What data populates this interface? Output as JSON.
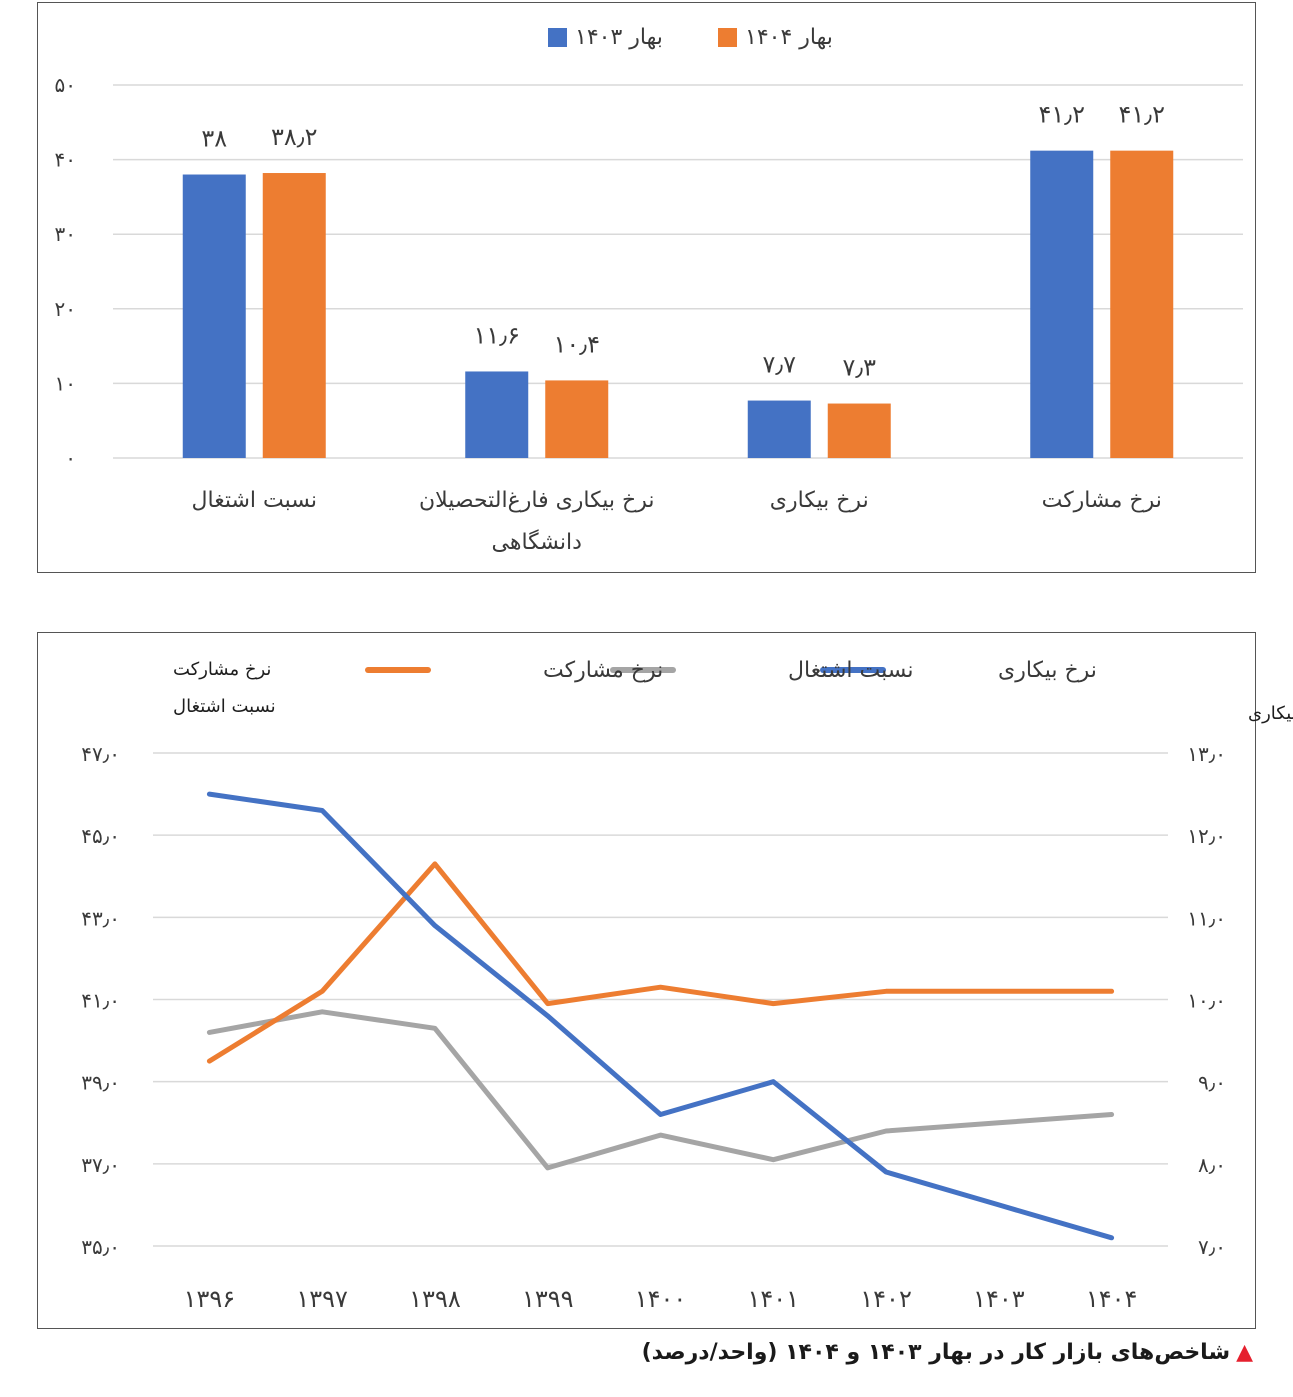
{
  "colors": {
    "spring_1403": "#4472C4",
    "spring_1404": "#ED7D31",
    "participation": "#ED7D31",
    "employment": "#A5A5A5",
    "unemployment": "#4472C4",
    "gridline": "#D9D9D9",
    "caption_marker": "#E5202E"
  },
  "caption": {
    "marker_icon": "red-triangle-icon",
    "text": "شاخص‌های بازار کار در بهار ۱۴۰۳ و ۱۴۰۴ (واحد/درصد)"
  },
  "chart_data": [
    {
      "type": "bar",
      "legend_position": "top-center",
      "grid": true,
      "ylim": [
        0,
        50
      ],
      "y_ticks": [
        0,
        10,
        20,
        30,
        40,
        50
      ],
      "y_tick_labels": [
        "۰",
        "۱۰",
        "۲۰",
        "۳۰",
        "۴۰",
        "۵۰"
      ],
      "categories": [
        "نرخ مشارکت",
        "نرخ بیکاری",
        "نرخ بیکاری فارغ‌التحصیلان دانشگاهی",
        "نسبت اشتغال"
      ],
      "category_label_lines": [
        [
          "نرخ مشارکت"
        ],
        [
          "نرخ بیکاری"
        ],
        [
          "نرخ بیکاری فارغ‌التحصیلان",
          "دانشگاهی"
        ],
        [
          "نسبت اشتغال"
        ]
      ],
      "series": [
        {
          "name": "بهار ۱۴۰۳",
          "color": "#4472C4",
          "values": [
            41.2,
            7.7,
            11.6,
            38
          ],
          "labels": [
            "۴۱٫۲",
            "۷٫۷",
            "۱۱٫۶",
            "۳۸"
          ]
        },
        {
          "name": "بهار ۱۴۰۴",
          "color": "#ED7D31",
          "values": [
            41.2,
            7.3,
            10.4,
            38.2
          ],
          "labels": [
            "۴۱٫۲",
            "۷٫۳",
            "۱۰٫۴",
            "۳۸٫۲"
          ]
        }
      ]
    },
    {
      "type": "line",
      "legend_position": "top-center",
      "grid": true,
      "x": [
        "۱۳۹۶",
        "۱۳۹۷",
        "۱۳۹۸",
        "۱۳۹۹",
        "۱۴۰۰",
        "۱۴۰۱",
        "۱۴۰۲",
        "۱۴۰۳",
        "۱۴۰۴"
      ],
      "ylabel_left": [
        "نرخ مشارکت",
        "نسبت اشتغال"
      ],
      "ylabel_right": "نرخ بیکاری",
      "ylim_left": [
        35,
        47
      ],
      "ylim_right": [
        7,
        13
      ],
      "y_ticks_left": [
        35,
        37,
        39,
        41,
        43,
        45,
        47
      ],
      "y_tick_labels_left": [
        "۳۵٫۰",
        "۳۷٫۰",
        "۳۹٫۰",
        "۴۱٫۰",
        "۴۳٫۰",
        "۴۵٫۰",
        "۴۷٫۰"
      ],
      "y_ticks_right": [
        7,
        8,
        9,
        10,
        11,
        12,
        13
      ],
      "y_tick_labels_right": [
        "۷٫۰",
        "۸٫۰",
        "۹٫۰",
        "۱۰٫۰",
        "۱۱٫۰",
        "۱۲٫۰",
        "۱۳٫۰"
      ],
      "series": [
        {
          "name": "نرخ بیکاری",
          "axis": "right",
          "color": "#4472C4",
          "values": [
            12.5,
            12.3,
            10.9,
            9.8,
            8.6,
            9.0,
            7.9,
            7.5,
            7.1
          ]
        },
        {
          "name": "نسبت اشتغال",
          "axis": "left",
          "color": "#A5A5A5",
          "values": [
            40.2,
            40.7,
            40.3,
            36.9,
            37.7,
            37.1,
            37.8,
            38.0,
            38.2
          ]
        },
        {
          "name": "نرخ مشارکت",
          "axis": "left",
          "color": "#ED7D31",
          "values": [
            39.5,
            41.2,
            44.3,
            40.9,
            41.3,
            40.9,
            41.2,
            41.2,
            41.2
          ]
        }
      ]
    }
  ]
}
